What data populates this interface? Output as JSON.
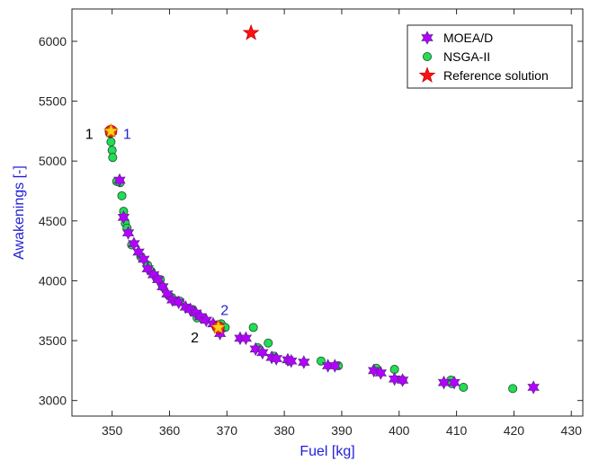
{
  "chart_data": {
    "type": "scatter",
    "xlabel": "Fuel [kg]",
    "ylabel": "Awakenings [-]",
    "xlim": [
      343,
      432
    ],
    "ylim": [
      2870,
      6270
    ],
    "xticks": [
      350,
      360,
      370,
      380,
      390,
      400,
      410,
      420,
      430
    ],
    "yticks": [
      3000,
      3500,
      4000,
      4500,
      5000,
      5500,
      6000
    ],
    "grid": false,
    "legend_position": "top-right",
    "series": [
      {
        "name": "MOEA/D",
        "marker": "hexagram",
        "color": "#b400ff",
        "points": [
          [
            349.8,
            5250
          ],
          [
            351.3,
            4840
          ],
          [
            352.0,
            4530
          ],
          [
            352.8,
            4400
          ],
          [
            353.8,
            4310
          ],
          [
            354.6,
            4240
          ],
          [
            355.5,
            4180
          ],
          [
            356.2,
            4100
          ],
          [
            357.2,
            4050
          ],
          [
            358.0,
            4010
          ],
          [
            358.8,
            3950
          ],
          [
            359.6,
            3890
          ],
          [
            360.5,
            3840
          ],
          [
            361.6,
            3820
          ],
          [
            362.8,
            3780
          ],
          [
            363.6,
            3760
          ],
          [
            364.6,
            3730
          ],
          [
            365.4,
            3700
          ],
          [
            366.4,
            3670
          ],
          [
            367.6,
            3640
          ],
          [
            368.8,
            3560
          ],
          [
            372.3,
            3520
          ],
          [
            373.3,
            3520
          ],
          [
            375.0,
            3430
          ],
          [
            376.2,
            3400
          ],
          [
            377.8,
            3360
          ],
          [
            378.6,
            3350
          ],
          [
            380.6,
            3340
          ],
          [
            381.2,
            3330
          ],
          [
            383.4,
            3320
          ],
          [
            387.6,
            3290
          ],
          [
            388.8,
            3290
          ],
          [
            395.6,
            3250
          ],
          [
            396.8,
            3230
          ],
          [
            399.2,
            3180
          ],
          [
            400.6,
            3170
          ],
          [
            407.8,
            3150
          ],
          [
            409.6,
            3150
          ],
          [
            423.4,
            3110
          ]
        ]
      },
      {
        "name": "NSGA-II",
        "marker": "circle",
        "color": "#22dd55",
        "points": [
          [
            349.6,
            5230
          ],
          [
            349.8,
            5160
          ],
          [
            350.0,
            5090
          ],
          [
            350.1,
            5030
          ],
          [
            350.8,
            4830
          ],
          [
            351.4,
            4820
          ],
          [
            351.7,
            4710
          ],
          [
            352.0,
            4580
          ],
          [
            352.3,
            4480
          ],
          [
            352.6,
            4440
          ],
          [
            353.4,
            4300
          ],
          [
            355.0,
            4200
          ],
          [
            356.2,
            4130
          ],
          [
            356.8,
            4080
          ],
          [
            358.4,
            4010
          ],
          [
            358.8,
            3950
          ],
          [
            359.8,
            3880
          ],
          [
            360.4,
            3860
          ],
          [
            361.8,
            3830
          ],
          [
            364.0,
            3760
          ],
          [
            364.8,
            3690
          ],
          [
            369.0,
            3640
          ],
          [
            369.7,
            3610
          ],
          [
            374.6,
            3610
          ],
          [
            375.4,
            3440
          ],
          [
            377.2,
            3480
          ],
          [
            378.2,
            3370
          ],
          [
            380.8,
            3330
          ],
          [
            386.4,
            3330
          ],
          [
            389.4,
            3290
          ],
          [
            396.0,
            3270
          ],
          [
            399.2,
            3260
          ],
          [
            400.6,
            3170
          ],
          [
            409.0,
            3170
          ],
          [
            409.2,
            3140
          ],
          [
            411.2,
            3110
          ],
          [
            419.8,
            3100
          ]
        ]
      },
      {
        "name": "Reference solution",
        "marker": "pentagram",
        "color": "#ff1010",
        "points": [
          [
            374.2,
            6070
          ]
        ]
      }
    ],
    "highlights": [
      {
        "x": 349.8,
        "y": 5250
      },
      {
        "x": 368.5,
        "y": 3610
      }
    ],
    "annotations": [
      {
        "text": "1",
        "x": 346.0,
        "y": 5230,
        "color": "#000000"
      },
      {
        "text": "1",
        "x": 352.6,
        "y": 5230,
        "color": "#1f1fd6"
      },
      {
        "text": "2",
        "x": 369.6,
        "y": 3760,
        "color": "#1f1fd6"
      },
      {
        "text": "2",
        "x": 364.4,
        "y": 3530,
        "color": "#000000"
      }
    ]
  }
}
